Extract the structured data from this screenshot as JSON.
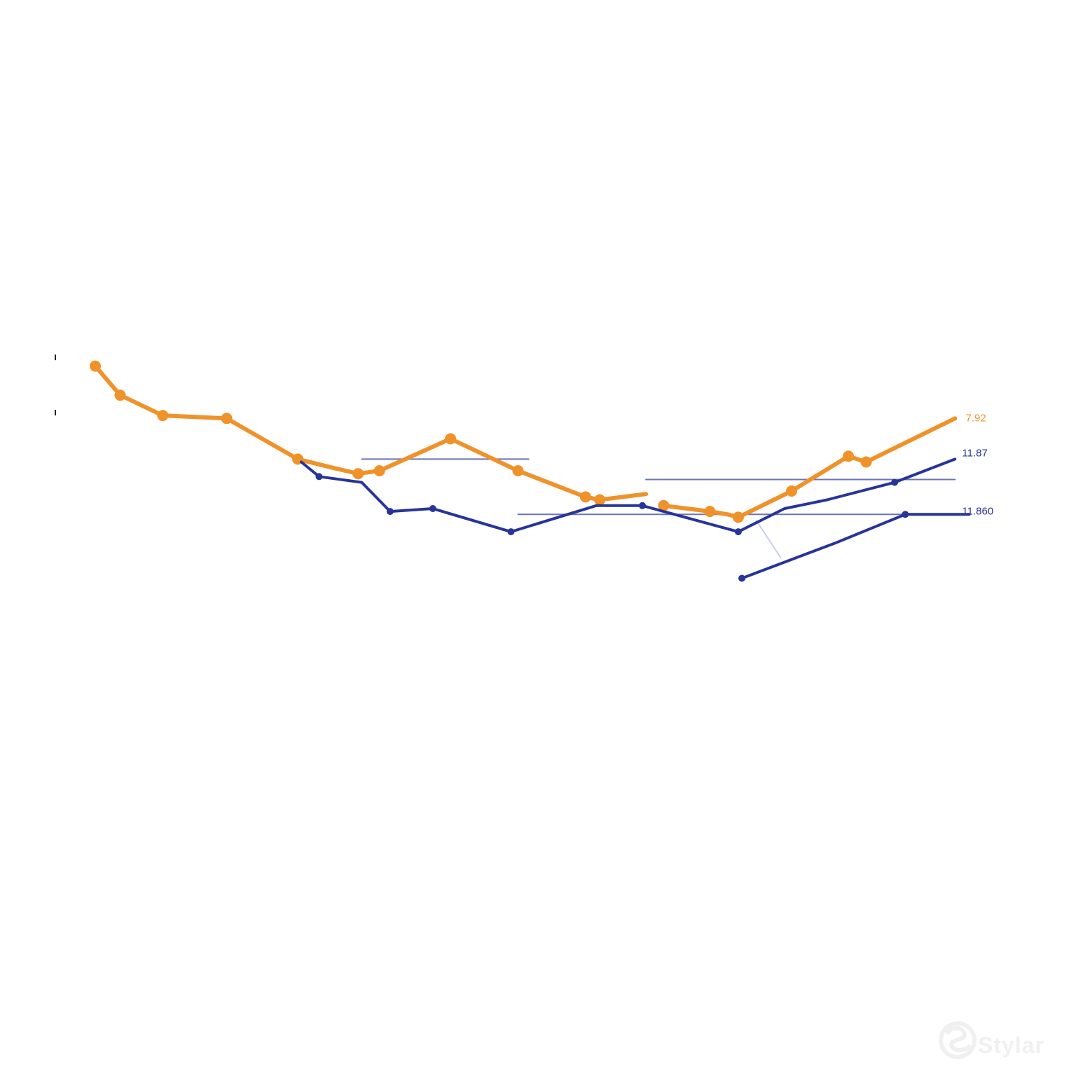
{
  "chart_data": {
    "type": "line",
    "title": "",
    "xlabel": "",
    "ylabel": "",
    "grid": false,
    "xlim": [
      0,
      28
    ],
    "ylim": [
      0,
      20
    ],
    "colors": {
      "orange": "#f0922a",
      "blue": "#27349a",
      "reference": "#6c74b8",
      "faint": "#c7cdf1"
    },
    "series": [
      {
        "key": "orange-primary",
        "color": "#f0922a",
        "points": [
          [
            1.4,
            15.6
          ],
          [
            2.1,
            14.6
          ],
          [
            3.3,
            13.9
          ],
          [
            5.1,
            13.8
          ],
          [
            7.1,
            12.4
          ],
          [
            8.1,
            12.1
          ],
          [
            8.8,
            11.9
          ],
          [
            9.4,
            12.0
          ],
          [
            11.4,
            13.1
          ],
          [
            13.3,
            12.0
          ],
          [
            15.2,
            11.1
          ],
          [
            15.6,
            11.0
          ],
          [
            16.9,
            11.2
          ]
        ],
        "markers": [
          true,
          true,
          true,
          true,
          true,
          false,
          true,
          true,
          true,
          true,
          true,
          true,
          false
        ]
      },
      {
        "key": "orange-secondary",
        "color": "#f0922a",
        "points": [
          [
            17.4,
            10.8
          ],
          [
            18.7,
            10.6
          ],
          [
            19.2,
            10.5
          ],
          [
            19.5,
            10.4
          ],
          [
            21.0,
            11.3
          ],
          [
            22.6,
            12.5
          ],
          [
            23.1,
            12.3
          ],
          [
            25.6,
            13.8
          ]
        ],
        "markers": [
          true,
          true,
          false,
          true,
          true,
          true,
          true,
          false
        ]
      },
      {
        "key": "blue-primary",
        "color": "#27349a",
        "points": [
          [
            7.2,
            12.3
          ],
          [
            7.7,
            11.8
          ],
          [
            8.9,
            11.6
          ],
          [
            9.7,
            10.6
          ],
          [
            10.9,
            10.7
          ],
          [
            13.1,
            9.9
          ],
          [
            15.5,
            10.8
          ],
          [
            16.8,
            10.8
          ],
          [
            19.5,
            9.9
          ],
          [
            20.8,
            10.7
          ],
          [
            22.0,
            11.0
          ],
          [
            23.9,
            11.6
          ],
          [
            25.6,
            12.4
          ]
        ],
        "markers": [
          false,
          true,
          false,
          true,
          true,
          true,
          false,
          true,
          true,
          false,
          false,
          true,
          false
        ]
      },
      {
        "key": "blue-secondary",
        "color": "#27349a",
        "points": [
          [
            19.6,
            8.3
          ],
          [
            20.9,
            8.9
          ],
          [
            22.2,
            9.5
          ],
          [
            24.2,
            10.5
          ],
          [
            26.0,
            10.5
          ]
        ],
        "markers": [
          true,
          false,
          false,
          true,
          false
        ]
      }
    ],
    "reference_lines": [
      {
        "x1": 8.9,
        "x2": 13.6,
        "y": 12.4,
        "color": "#6c74b8"
      },
      {
        "x1": 16.9,
        "x2": 25.6,
        "y": 11.7,
        "color": "#6c74b8"
      },
      {
        "x1": 13.3,
        "x2": 25.4,
        "y": 10.5,
        "color": "#6c74b8"
      }
    ],
    "connector": {
      "x1": 20.0,
      "y1": 10.3,
      "x2": 20.7,
      "y2": 9.0,
      "color": "#c7cdf1"
    },
    "annotations": [
      {
        "text": "7.92",
        "x": 25.9,
        "y": 13.7,
        "color": "#f0922a"
      },
      {
        "text": "11.87",
        "x": 25.8,
        "y": 12.5,
        "color": "#27349a"
      },
      {
        "text": "11.860",
        "x": 25.8,
        "y": 10.5,
        "color": "#27349a"
      }
    ]
  },
  "watermark": {
    "text": "Stylar"
  }
}
